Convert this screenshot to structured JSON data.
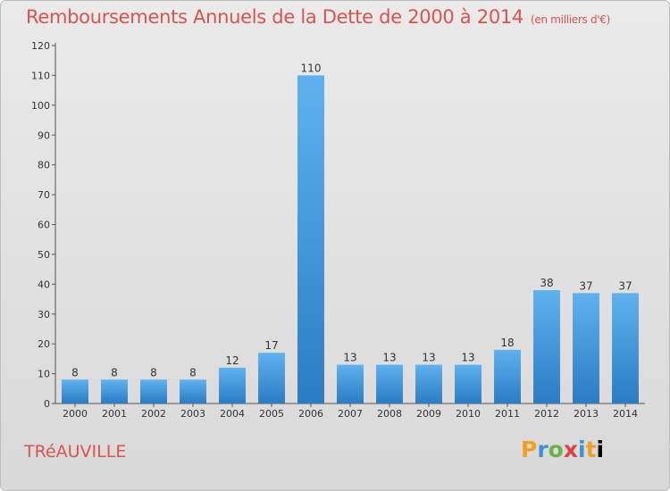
{
  "title": "Remboursements Annuels de la Dette de 2000 à 2014",
  "unit_note": "(en milliers d'€)",
  "commune": "TRéAUVILLE",
  "logo_text": "Proxiti",
  "colors": {
    "bar": "#3a8fd8",
    "bar_light": "#5aaeea",
    "title": "#d9534f"
  },
  "chart_data": {
    "type": "bar",
    "title": "Remboursements Annuels de la Dette de 2000 à 2014",
    "categories": [
      "2000",
      "2001",
      "2002",
      "2003",
      "2004",
      "2005",
      "2006",
      "2007",
      "2008",
      "2009",
      "2010",
      "2011",
      "2012",
      "2013",
      "2014"
    ],
    "values": [
      8,
      8,
      8,
      8,
      12,
      17,
      110,
      13,
      13,
      13,
      13,
      18,
      38,
      37,
      37
    ],
    "ylim": [
      0,
      120
    ],
    "yticks": [
      0,
      10,
      20,
      30,
      40,
      50,
      60,
      70,
      80,
      90,
      100,
      110,
      120
    ],
    "grid": false,
    "data_labels": true
  }
}
